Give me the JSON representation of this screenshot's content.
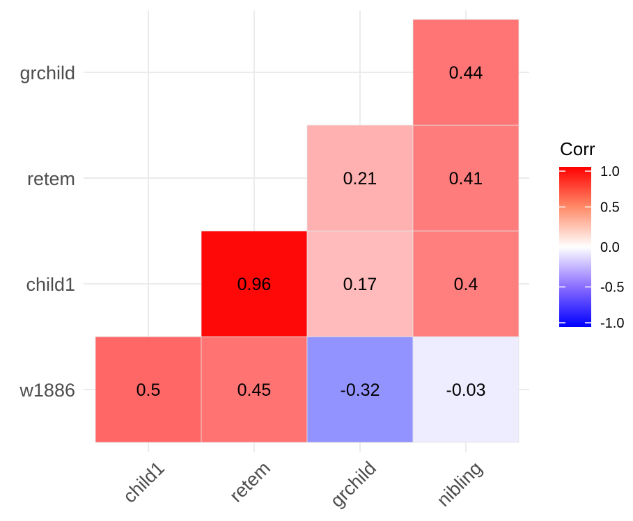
{
  "chart_data": {
    "type": "heatmap",
    "title": "",
    "x_categories": [
      "child1",
      "retem",
      "grchild",
      "nibling"
    ],
    "y_categories": [
      "w1886",
      "child1",
      "retem",
      "grchild"
    ],
    "cells": [
      {
        "x": "child1",
        "y": "w1886",
        "value": 0.5,
        "label": "0.5"
      },
      {
        "x": "retem",
        "y": "w1886",
        "value": 0.45,
        "label": "0.45"
      },
      {
        "x": "grchild",
        "y": "w1886",
        "value": -0.32,
        "label": "-0.32"
      },
      {
        "x": "nibling",
        "y": "w1886",
        "value": -0.03,
        "label": "-0.03"
      },
      {
        "x": "retem",
        "y": "child1",
        "value": 0.96,
        "label": "0.96"
      },
      {
        "x": "grchild",
        "y": "child1",
        "value": 0.17,
        "label": "0.17"
      },
      {
        "x": "nibling",
        "y": "child1",
        "value": 0.4,
        "label": "0.4"
      },
      {
        "x": "grchild",
        "y": "retem",
        "value": 0.21,
        "label": "0.21"
      },
      {
        "x": "nibling",
        "y": "retem",
        "value": 0.41,
        "label": "0.41"
      },
      {
        "x": "nibling",
        "y": "grchild",
        "value": 0.44,
        "label": "0.44"
      }
    ],
    "legend": {
      "title": "Corr",
      "placement": "right",
      "ticks": [
        {
          "value": 1.0,
          "label": "1.0"
        },
        {
          "value": 0.5,
          "label": "0.5"
        },
        {
          "value": 0.0,
          "label": "0.0"
        },
        {
          "value": -0.5,
          "label": "-0.5"
        },
        {
          "value": -1.0,
          "label": "-1.0"
        }
      ]
    },
    "color_scale": {
      "low": "#0000ff",
      "mid": "#ffffff",
      "high": "#ff0000",
      "limits": [
        -1,
        1
      ]
    },
    "grid": true,
    "x_tick_rotation_deg": 45
  }
}
